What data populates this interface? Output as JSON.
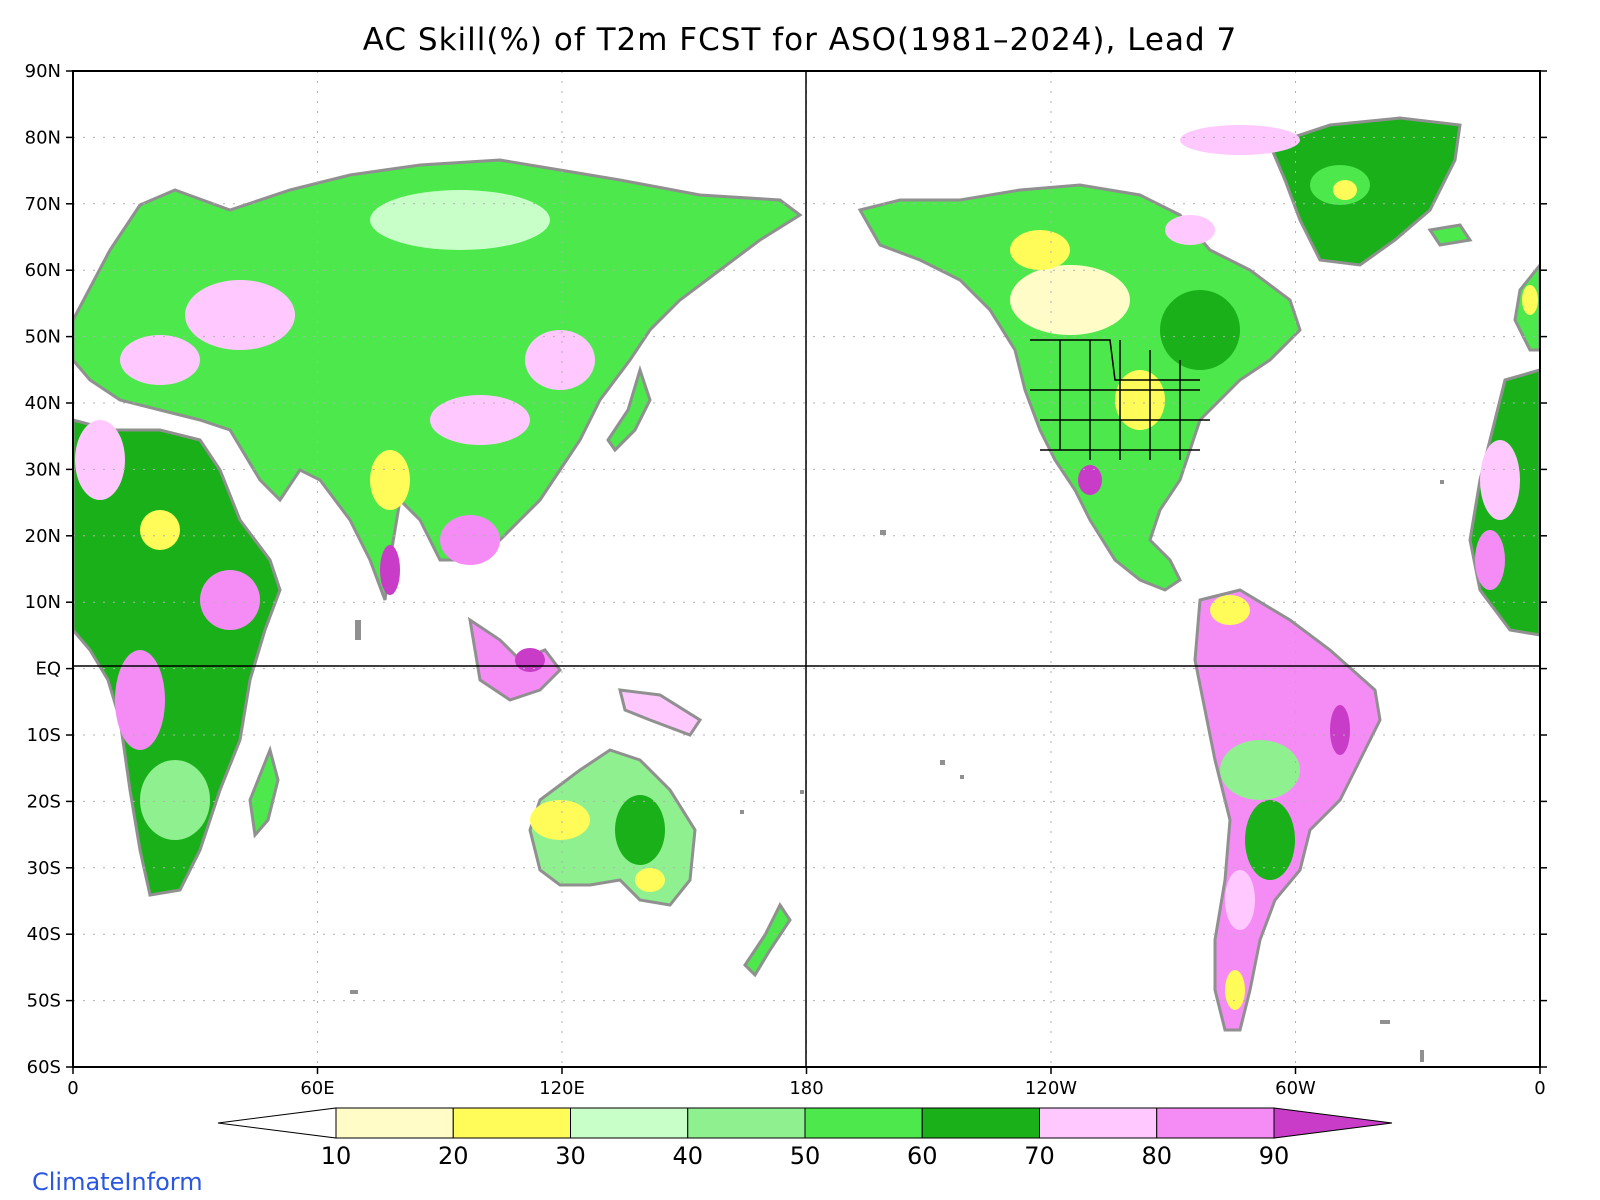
{
  "title": "AC Skill(%) of T2m FCST for ASO(1981–2024), Lead 7",
  "lat_labels": [
    "90N",
    "80N",
    "70N",
    "60N",
    "50N",
    "40N",
    "30N",
    "20N",
    "10N",
    "EQ",
    "10S",
    "20S",
    "30S",
    "40S",
    "50S",
    "60S"
  ],
  "lon_labels": [
    "0",
    "60E",
    "120E",
    "180",
    "120W",
    "60W",
    "0"
  ],
  "colorbar": {
    "labels": [
      "10",
      "20",
      "30",
      "40",
      "50",
      "60",
      "70",
      "80",
      "90"
    ],
    "colors": [
      "#ffffff",
      "#fffcc8",
      "#fffc5a",
      "#c8ffc8",
      "#8ff08f",
      "#4ce84c",
      "#1ab01a",
      "#ffc8ff",
      "#f58cf5",
      "#c83cc8"
    ]
  },
  "colors": {
    "land_outline": "#909090",
    "grid": "#b0b0b0",
    "frame": "#000000"
  },
  "credit": "ClimateInform"
}
